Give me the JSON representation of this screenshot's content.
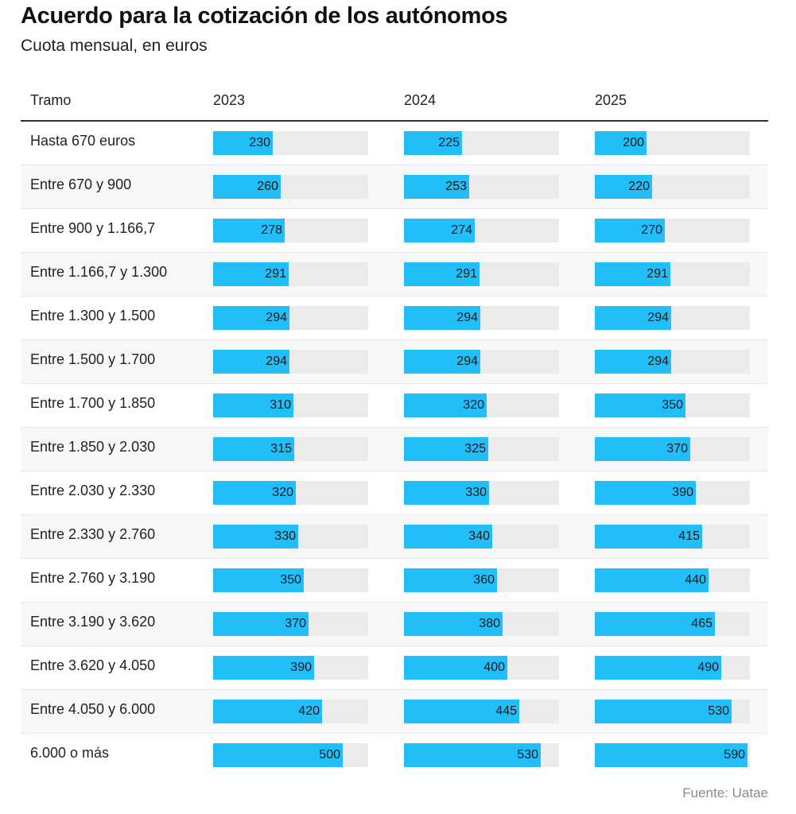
{
  "chart_data": {
    "type": "bar",
    "title": "Acuerdo para la cotización de los autónomos",
    "subtitle": "Cuota mensual, en euros",
    "row_header": "Tramo",
    "xlim": [
      0,
      600
    ],
    "categories": [
      "Hasta 670 euros",
      "Entre 670 y 900",
      "Entre 900 y 1.166,7",
      "Entre 1.166,7 y 1.300",
      "Entre 1.300 y 1.500",
      "Entre 1.500 y 1.700",
      "Entre 1.700 y 1.850",
      "Entre 1.850 y 2.030",
      "Entre 2.030 y 2.330",
      "Entre 2.330 y 2.760",
      "Entre 2.760 y 3.190",
      "Entre 3.190 y 3.620",
      "Entre 3.620 y 4.050",
      "Entre 4.050 y 6.000",
      "6.000 o más"
    ],
    "series": [
      {
        "name": "2023",
        "values": [
          230,
          260,
          278,
          291,
          294,
          294,
          310,
          315,
          320,
          330,
          350,
          370,
          390,
          420,
          500
        ]
      },
      {
        "name": "2024",
        "values": [
          225,
          253,
          274,
          291,
          294,
          294,
          320,
          325,
          330,
          340,
          360,
          380,
          400,
          445,
          530
        ]
      },
      {
        "name": "2025",
        "values": [
          200,
          220,
          270,
          291,
          294,
          294,
          350,
          370,
          390,
          415,
          440,
          465,
          490,
          530,
          590
        ]
      }
    ],
    "bar_color": "#21bef9",
    "track_color": "#ebebeb",
    "source": "Fuente: Uatae"
  }
}
